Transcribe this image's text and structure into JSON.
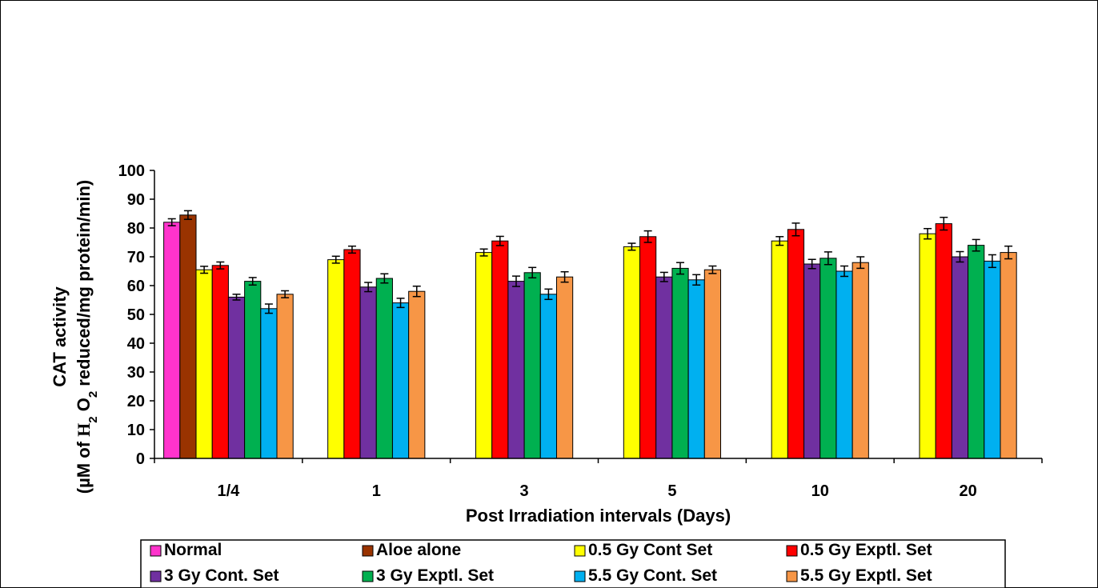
{
  "chart_data": {
    "type": "bar",
    "title": "",
    "xlabel": "Post Irradiation  intervals (Days)",
    "ylabel_line1": "CAT activity",
    "ylabel_line2": {
      "prefix": "(µM of ",
      "h": "H",
      "h_sub": "2",
      "o": " O",
      "o_sub": "2",
      "suffix": " reduced/mg protein/min)"
    },
    "ylim": [
      0,
      100
    ],
    "yticks": [
      "0",
      "10",
      "20",
      "30",
      "40",
      "50",
      "60",
      "70",
      "80",
      "90",
      "100"
    ],
    "categories": [
      "1/4",
      "1",
      "3",
      "5",
      "10",
      "20"
    ],
    "grid": false,
    "legend_position": "bottom",
    "series": [
      {
        "name": "Normal",
        "color": "#ff33cc",
        "values": [
          82,
          null,
          null,
          null,
          null,
          null
        ],
        "errors": [
          1.2,
          null,
          null,
          null,
          null,
          null
        ]
      },
      {
        "name": "Aloe alone",
        "color": "#993300",
        "values": [
          84.5,
          null,
          null,
          null,
          null,
          null
        ],
        "errors": [
          1.5,
          null,
          null,
          null,
          null,
          null
        ]
      },
      {
        "name": "0.5 Gy Cont Set",
        "color": "#ffff00",
        "values": [
          65.5,
          69,
          71.5,
          73.5,
          75.5,
          78
        ],
        "errors": [
          1.2,
          1.2,
          1.2,
          1.2,
          1.5,
          1.8
        ]
      },
      {
        "name": "0.5 Gy  Exptl. Set",
        "color": "#ff0000",
        "values": [
          67,
          72.5,
          75.5,
          77,
          79.5,
          81.5
        ],
        "errors": [
          1.2,
          1.2,
          1.6,
          2.0,
          2.2,
          2.2
        ]
      },
      {
        "name": "3 Gy  Cont. Set",
        "color": "#7030a0",
        "values": [
          56,
          59.5,
          61.5,
          63,
          67.5,
          70
        ],
        "errors": [
          1.0,
          1.6,
          1.8,
          1.6,
          1.6,
          1.8
        ]
      },
      {
        "name": "3 Gy  Exptl. Set",
        "color": "#00b050",
        "values": [
          61.5,
          62.5,
          64.5,
          66,
          69.5,
          74
        ],
        "errors": [
          1.3,
          1.6,
          1.8,
          2.0,
          2.2,
          2.0
        ]
      },
      {
        "name": "5.5 Gy  Cont. Set",
        "color": "#00b0f0",
        "values": [
          52,
          54,
          57,
          62,
          65,
          68.5
        ],
        "errors": [
          1.6,
          1.6,
          1.8,
          1.8,
          1.8,
          2.2
        ]
      },
      {
        "name": "5.5 Gy  Exptl. Set",
        "color": "#f79646",
        "values": [
          57,
          58,
          63,
          65.5,
          68,
          71.5
        ],
        "errors": [
          1.2,
          1.8,
          1.8,
          1.3,
          2.0,
          2.2
        ]
      }
    ]
  }
}
